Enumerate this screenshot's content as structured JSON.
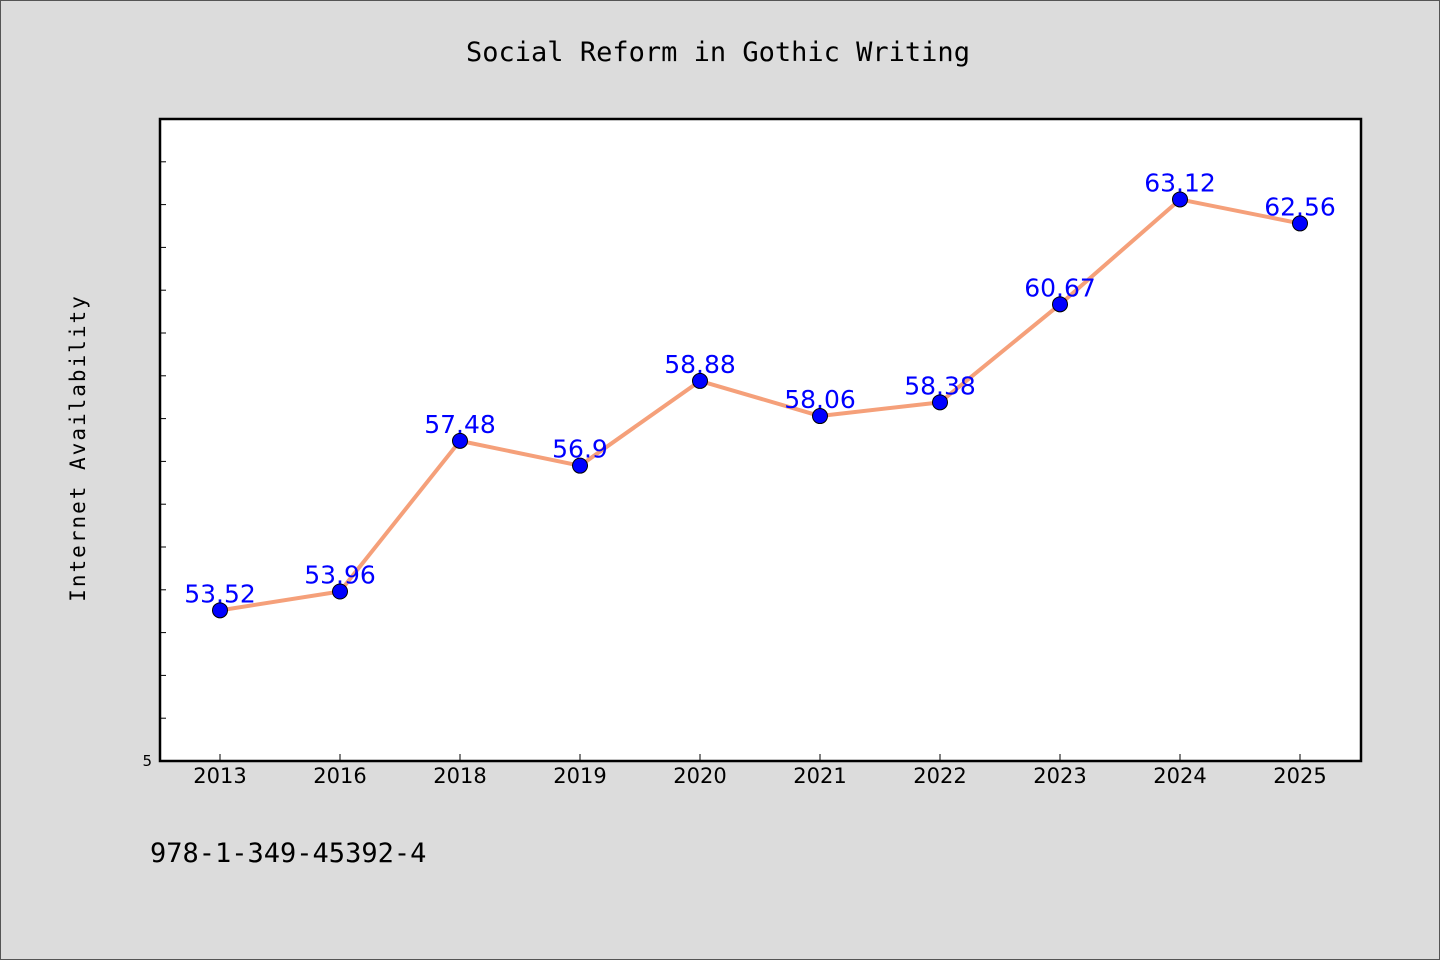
{
  "chart_data": {
    "type": "line",
    "title": "Social Reform in Gothic Writing",
    "xlabel": "",
    "ylabel": "Internet Availability",
    "categories": [
      "2013",
      "2016",
      "2018",
      "2019",
      "2020",
      "2021",
      "2022",
      "2023",
      "2024",
      "2025"
    ],
    "series": [
      {
        "values": [
          53.52,
          53.96,
          57.48,
          56.9,
          58.88,
          58.06,
          58.38,
          60.67,
          63.12,
          62.56
        ]
      }
    ],
    "data_labels": [
      "53.52",
      "53.96",
      "57.48",
      "56.9",
      "58.88",
      "58.06",
      "58.38",
      "60.67",
      "63.12",
      "62.56"
    ],
    "yticks": {
      "start": 50.0,
      "step": 1.0,
      "count": 15,
      "labeled": [
        "5"
      ]
    },
    "ylim": [
      50.0,
      65.0
    ],
    "grid": false,
    "legend": "none",
    "colors": {
      "line": "#f5a07a",
      "marker": "#0000ff",
      "data_label": "#0000ff",
      "background": "#dcdcdc",
      "plot_background": "#ffffff"
    }
  },
  "footnote": "978-1-349-45392-4"
}
